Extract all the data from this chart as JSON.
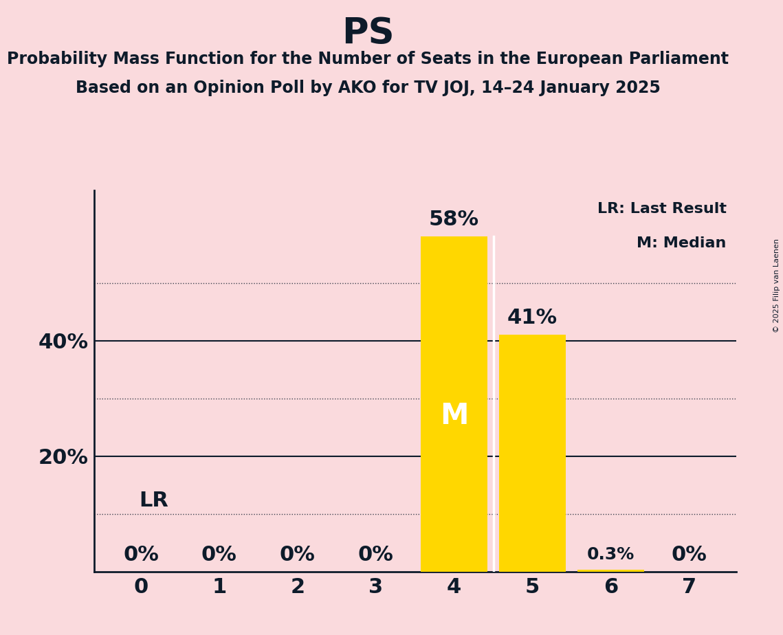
{
  "title": "PS",
  "subtitle1": "Probability Mass Function for the Number of Seats in the European Parliament",
  "subtitle2": "Based on an Opinion Poll by AKO for TV JOJ, 14–24 January 2025",
  "copyright": "© 2025 Filip van Laenen",
  "categories": [
    0,
    1,
    2,
    3,
    4,
    5,
    6,
    7
  ],
  "values": [
    0.0,
    0.0,
    0.0,
    0.0,
    0.58,
    0.41,
    0.003,
    0.0
  ],
  "value_labels": [
    "0%",
    "0%",
    "0%",
    "0%",
    "58%",
    "41%",
    "0.3%",
    "0%"
  ],
  "bar_color": "#FFD700",
  "background_color": "#FADADD",
  "text_color": "#0D1B2A",
  "median_seat": 4,
  "last_result_seat": 0,
  "legend_lr": "LR: Last Result",
  "legend_m": "M: Median",
  "ylim": [
    0,
    0.66
  ],
  "yticks": [
    0.2,
    0.4
  ],
  "ytick_labels": [
    "20%",
    "40%"
  ],
  "dotted_lines": [
    0.1,
    0.3,
    0.5
  ],
  "solid_lines": [
    0.2,
    0.4
  ]
}
